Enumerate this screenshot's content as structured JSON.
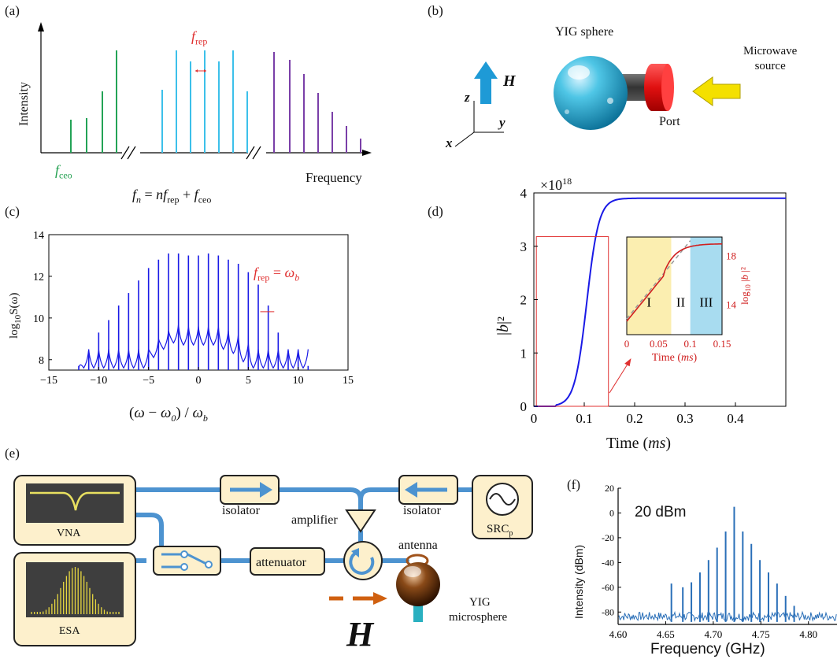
{
  "panel_labels": {
    "a": "(a)",
    "b": "(b)",
    "c": "(c)",
    "d": "(d)",
    "e": "(e)",
    "f": "(f)"
  },
  "panel_a": {
    "ylabel": "Intensity",
    "xlabel": "Frequency",
    "frep_label": "f",
    "frep_sub": "rep",
    "fceo_label": "f",
    "fceo_sub": "ceo",
    "equation": "f_n = n f_rep + f_ceo"
  },
  "panel_b": {
    "yig_label": "YIG sphere",
    "source_label": "Microwave\nsource",
    "source_line1": "Microwave",
    "source_line2": "source",
    "port_label": "Port",
    "h_label": "H",
    "axis_z": "z",
    "axis_y": "y",
    "axis_x": "x"
  },
  "panel_c": {
    "ylabel": "log10 S(ω)",
    "xlabel": "(ω − ω0) / ωb",
    "annotation": "f_rep = ω_b",
    "xticks": [
      "−15",
      "−10",
      "−5",
      "0",
      "5",
      "10",
      "15"
    ],
    "yticks": [
      "8",
      "10",
      "12",
      "14"
    ]
  },
  "panel_d": {
    "multiplier": "×10",
    "multiplier_exp": "18",
    "ylabel": "|b|²",
    "xlabel": "Time (ms)",
    "xticks": [
      "0",
      "0.1",
      "0.2",
      "0.3",
      "0.4"
    ],
    "yticks": [
      "0",
      "1",
      "2",
      "3",
      "4"
    ],
    "inset_xticks": [
      "0",
      "0.05",
      "0.1",
      "0.15"
    ],
    "inset_yticks": [
      "14",
      "18"
    ],
    "inset_xlabel": "Time (ms)",
    "inset_ylabel": "log10 |b|²",
    "regions": [
      "I",
      "II",
      "III"
    ]
  },
  "panel_e": {
    "vna": "VNA",
    "esa": "ESA",
    "isolator1": "isolator",
    "isolator2": "isolator",
    "amplifier": "amplifier",
    "attenuator": "attenuator",
    "antenna": "antenna",
    "src": "SRC",
    "src_sub": "p",
    "yig": "YIG\nmicrosphere",
    "yig_line1": "YIG",
    "yig_line2": "microsphere",
    "h_label": "H"
  },
  "panel_f": {
    "ylabel": "Intensity (dBm)",
    "xlabel": "Frequency (GHz)",
    "power_label": "20 dBm",
    "xticks": [
      "4.60",
      "4.65",
      "4.70",
      "4.75",
      "4.80"
    ],
    "yticks": [
      "20",
      "0",
      "-20",
      "-40",
      "-60",
      "-80"
    ]
  },
  "chart_data": [
    {
      "type": "line",
      "panel": "c",
      "xlabel": "(ω − ω0) / ωb",
      "ylabel": "log10 S(ω)",
      "xlim": [
        -15,
        15
      ],
      "ylim": [
        7.5,
        14
      ],
      "series": [
        {
          "peaks_x": [
            -12,
            -11,
            -10,
            -9,
            -8,
            -7,
            -6,
            -5,
            -4,
            -3,
            -2,
            -1,
            0,
            1,
            2,
            3,
            4,
            5,
            6,
            7,
            8,
            9,
            10,
            11
          ],
          "peaks_y": [
            7.7,
            8.4,
            9.3,
            9.9,
            10.6,
            11.2,
            11.8,
            12.4,
            12.8,
            13.1,
            13.1,
            13.0,
            13.0,
            13.1,
            13.0,
            12.8,
            12.6,
            12.2,
            11.6,
            10.6,
            9.3,
            8.4,
            8.3,
            7.7
          ]
        }
      ]
    },
    {
      "type": "line",
      "panel": "d",
      "xlabel": "Time (ms)",
      "ylabel": "|b|²",
      "xlim": [
        0,
        0.5
      ],
      "ylim": [
        0,
        4
      ],
      "series": [
        {
          "x": [
            0,
            0.05,
            0.07,
            0.09,
            0.11,
            0.13,
            0.15,
            0.18,
            0.22,
            0.3,
            0.4,
            0.5
          ],
          "y": [
            0,
            0.02,
            0.2,
            1.0,
            2.3,
            3.15,
            3.55,
            3.75,
            3.83,
            3.86,
            3.88,
            3.89
          ]
        }
      ]
    },
    {
      "type": "line",
      "panel": "f",
      "xlabel": "Frequency (GHz)",
      "ylabel": "Intensity (dBm)",
      "xlim": [
        4.6,
        4.83
      ],
      "ylim": [
        -90,
        20
      ],
      "series": [
        {
          "peaks_x": [
            4.656,
            4.668,
            4.677,
            4.686,
            4.695,
            4.704,
            4.713,
            4.722,
            4.731,
            4.74,
            4.749,
            4.758,
            4.767,
            4.776,
            4.785
          ],
          "peaks_y": [
            -57,
            -60,
            -56,
            -48,
            -38,
            -28,
            -15,
            5,
            -15,
            -25,
            -38,
            -48,
            -57,
            -67,
            -75
          ]
        }
      ]
    }
  ]
}
